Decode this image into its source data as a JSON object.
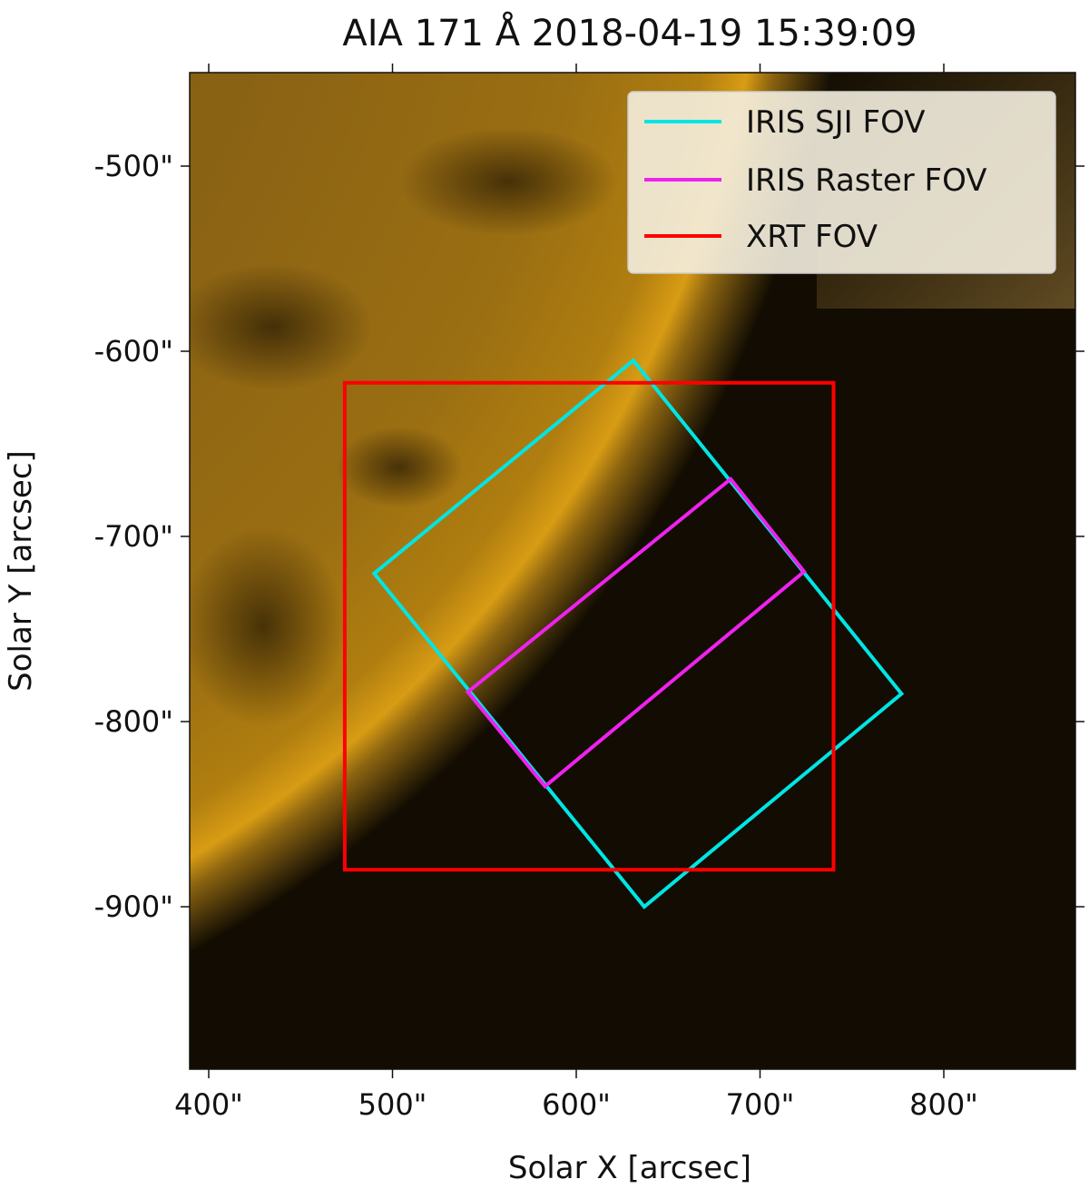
{
  "chart_data": {
    "type": "image-map",
    "title": "AIA 171 Å 2018-04-19 15:39:09",
    "xlabel": "Solar X [arcsec]",
    "ylabel": "Solar Y [arcsec]",
    "xlim": [
      390,
      870
    ],
    "ylim": [
      -988,
      -452
    ],
    "x_ticks": [
      {
        "value": 400,
        "label": "400\""
      },
      {
        "value": 500,
        "label": "500\""
      },
      {
        "value": 600,
        "label": "600\""
      },
      {
        "value": 700,
        "label": "700\""
      },
      {
        "value": 800,
        "label": "800\""
      }
    ],
    "y_ticks": [
      {
        "value": -500,
        "label": "-500\""
      },
      {
        "value": -600,
        "label": "-600\""
      },
      {
        "value": -700,
        "label": "-700\""
      },
      {
        "value": -800,
        "label": "-800\""
      },
      {
        "value": -900,
        "label": "-900\""
      }
    ],
    "legend_position": "top-right",
    "series": [
      {
        "name": "IRIS SJI FOV",
        "color": "#00e5e5",
        "points": [
          [
            631,
            -605
          ],
          [
            777,
            -785
          ],
          [
            637,
            -900
          ],
          [
            490,
            -720
          ]
        ]
      },
      {
        "name": "IRIS Raster FOV",
        "color": "#ee22ee",
        "points": [
          [
            684,
            -669
          ],
          [
            724,
            -719
          ],
          [
            583,
            -835
          ],
          [
            541,
            -784
          ]
        ]
      },
      {
        "name": "XRT FOV",
        "color": "#ff0000",
        "points": [
          [
            474,
            -617
          ],
          [
            740,
            -617
          ],
          [
            740,
            -880
          ],
          [
            474,
            -880
          ]
        ]
      }
    ]
  }
}
